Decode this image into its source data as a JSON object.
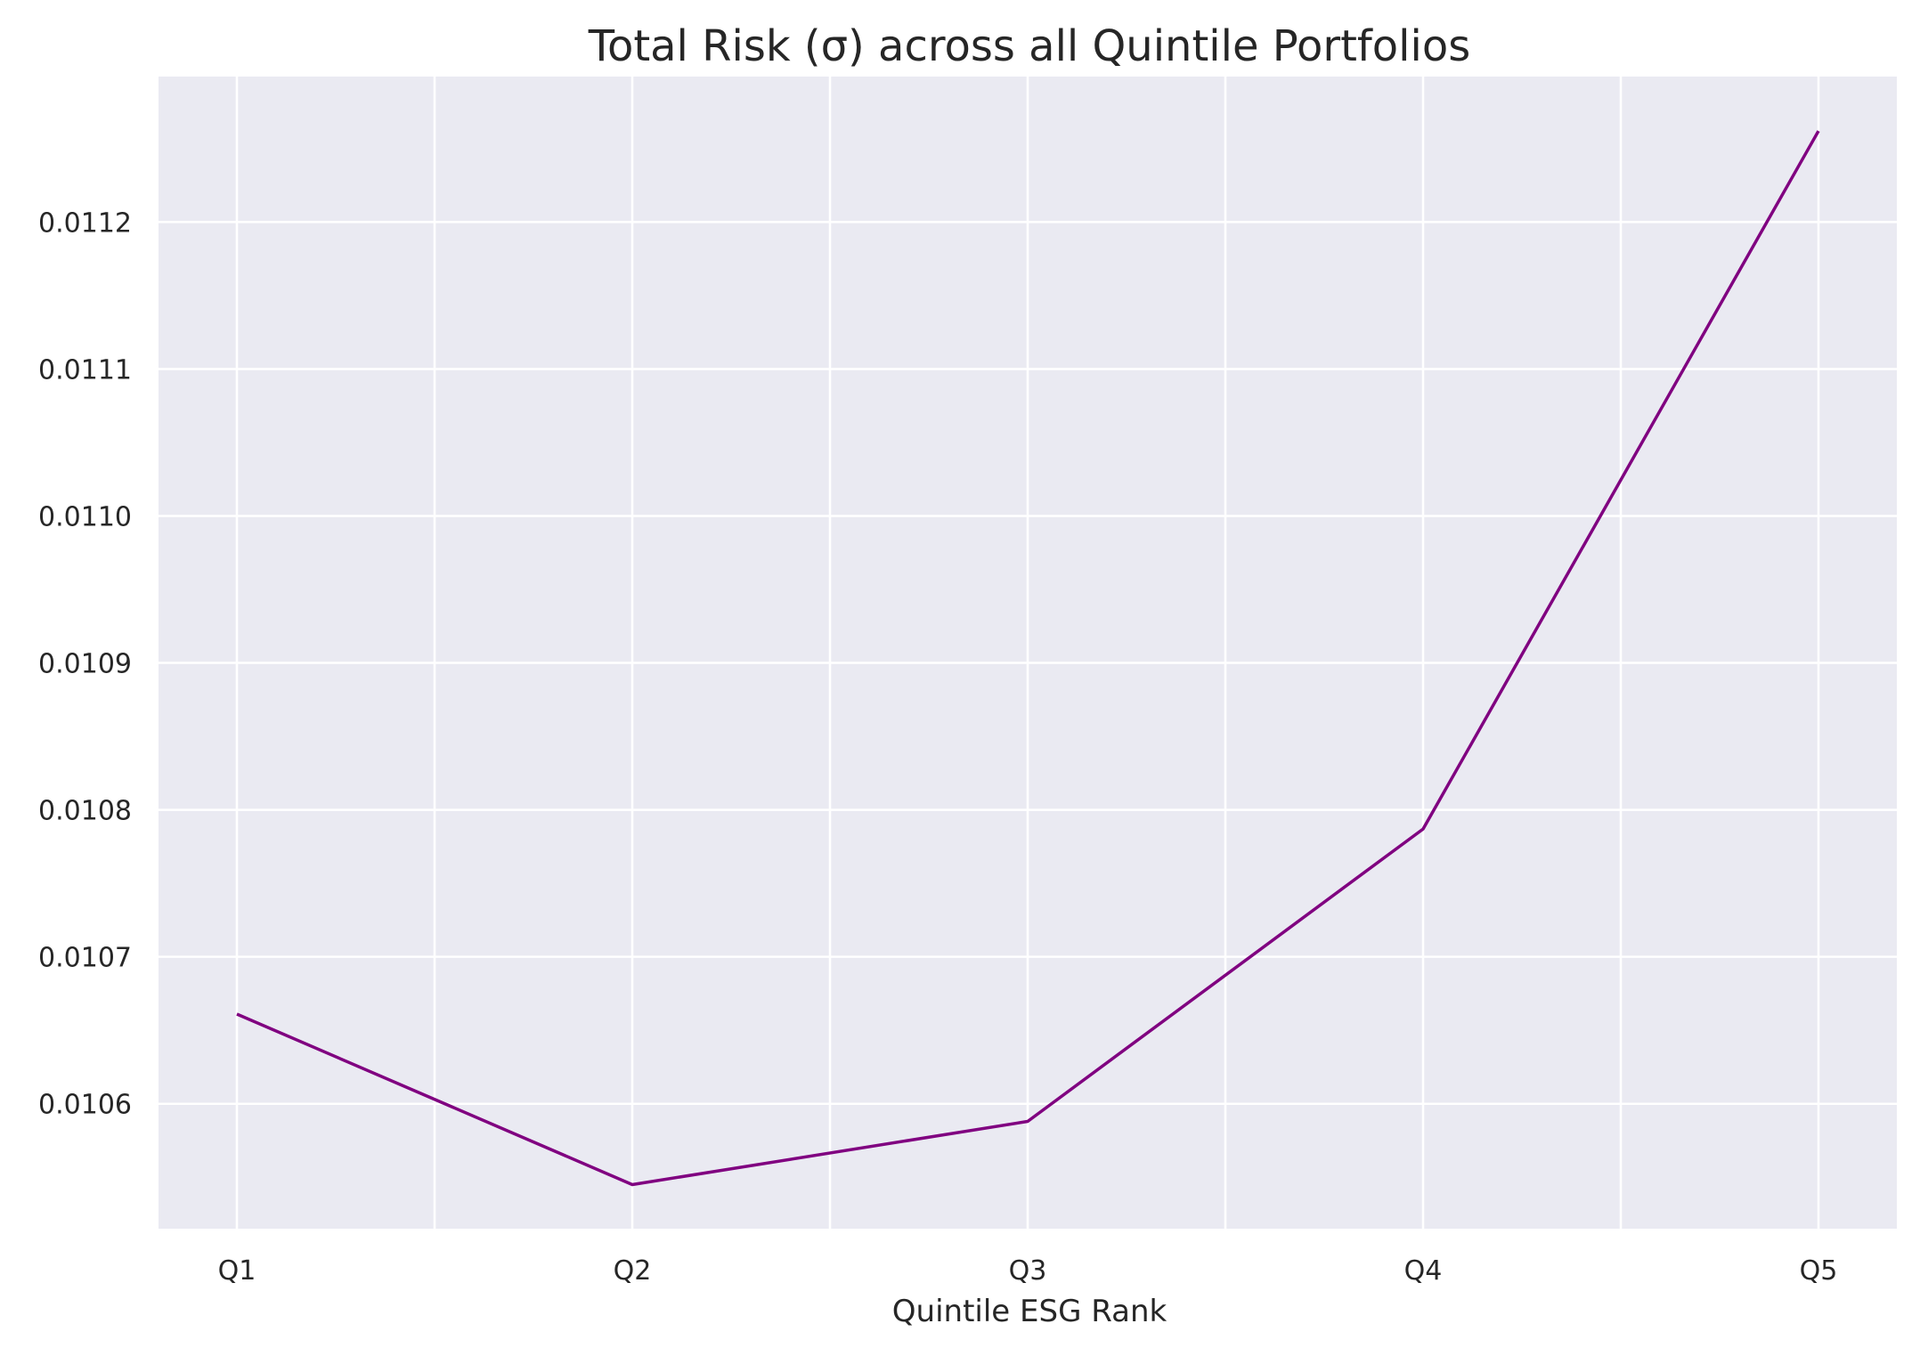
{
  "chart_data": {
    "type": "line",
    "title": "Total Risk (σ) across all Quintile Portfolios",
    "xlabel": "Quintile ESG Rank",
    "ylabel": "",
    "categories": [
      "Q1",
      "Q2",
      "Q3",
      "Q4",
      "Q5"
    ],
    "series": [
      {
        "values": [
          0.010661,
          0.010545,
          0.010588,
          0.010787,
          0.011262
        ],
        "color": "#800080"
      }
    ],
    "ylim": [
      0.010515,
      0.011299
    ],
    "yticks": [
      0.0106,
      0.0107,
      0.0108,
      0.0109,
      0.011,
      0.0111,
      0.0112
    ],
    "ytick_labels": [
      "0.0106",
      "0.0107",
      "0.0108",
      "0.0109",
      "0.0110",
      "0.0111",
      "0.0112"
    ],
    "grid": true,
    "legend": "none",
    "style": {
      "plot_background": "#EAEAF2",
      "grid_color": "#FFFFFF",
      "text_color": "#262626"
    }
  }
}
